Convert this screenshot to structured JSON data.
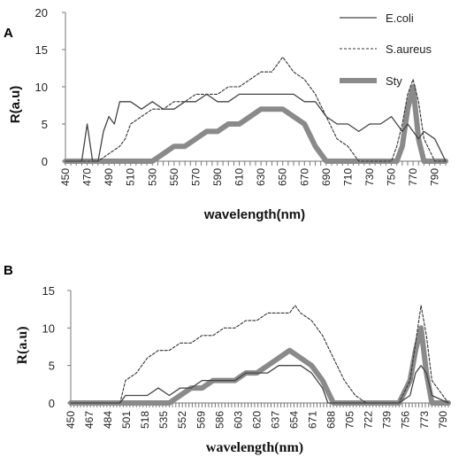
{
  "chart_data": [
    {
      "panel": "A",
      "type": "line",
      "xlabel": "wavelength(nm)",
      "ylabel": "R(a.u)",
      "ylim": [
        0,
        20
      ],
      "yticks": [
        "0",
        "5",
        "10",
        "15",
        "20"
      ],
      "xlim": [
        450,
        800
      ],
      "xticks": [
        "450",
        "470",
        "490",
        "510",
        "530",
        "550",
        "570",
        "590",
        "610",
        "630",
        "650",
        "670",
        "690",
        "710",
        "730",
        "750",
        "770",
        "790"
      ],
      "grid": false,
      "legend": "top-right",
      "series": [
        {
          "name": "E.coli",
          "style": "solid",
          "x": [
            450,
            455,
            460,
            465,
            470,
            475,
            480,
            485,
            490,
            495,
            500,
            510,
            520,
            530,
            540,
            550,
            560,
            570,
            580,
            590,
            600,
            610,
            620,
            630,
            640,
            650,
            660,
            670,
            680,
            690,
            700,
            710,
            720,
            730,
            740,
            750,
            760,
            765,
            770,
            775,
            780,
            790,
            800
          ],
          "y": [
            0,
            0,
            0,
            0,
            5,
            0,
            0,
            4,
            6,
            5,
            8,
            8,
            7,
            8,
            7,
            7,
            8,
            8,
            9,
            8,
            8,
            9,
            9,
            9,
            9,
            9,
            9,
            8,
            8,
            6,
            5,
            5,
            4,
            5,
            5,
            6,
            4,
            5,
            4,
            3,
            4,
            3,
            0
          ]
        },
        {
          "name": "S.aureus",
          "style": "dashed",
          "x": [
            450,
            480,
            490,
            500,
            505,
            510,
            520,
            530,
            540,
            550,
            560,
            570,
            580,
            590,
            600,
            610,
            620,
            630,
            640,
            645,
            650,
            655,
            660,
            670,
            680,
            690,
            700,
            710,
            720,
            730,
            740,
            750,
            755,
            760,
            765,
            770,
            775,
            780,
            790,
            800
          ],
          "y": [
            0,
            0,
            1,
            2,
            3,
            5,
            6,
            7,
            7,
            8,
            8,
            9,
            9,
            9,
            10,
            10,
            11,
            12,
            12,
            13,
            14,
            13,
            12,
            11,
            9,
            6,
            3,
            2,
            0,
            0,
            0,
            0,
            2,
            5,
            9,
            11,
            8,
            3,
            0,
            0
          ]
        },
        {
          "name": "Sty",
          "style": "thick",
          "x": [
            450,
            530,
            540,
            550,
            560,
            570,
            580,
            590,
            600,
            610,
            620,
            630,
            640,
            650,
            660,
            670,
            680,
            690,
            750,
            755,
            760,
            765,
            770,
            775,
            780,
            800
          ],
          "y": [
            0,
            0,
            1,
            2,
            2,
            3,
            4,
            4,
            5,
            5,
            6,
            7,
            7,
            7,
            6,
            5,
            2,
            0,
            0,
            0,
            2,
            7,
            10,
            3,
            0,
            0
          ]
        }
      ]
    },
    {
      "panel": "B",
      "type": "line",
      "xlabel": "wavelength(nm)",
      "ylabel": "R(a.u)",
      "ylim": [
        0,
        15
      ],
      "yticks": [
        "0",
        "5",
        "10",
        "15"
      ],
      "xlim": [
        450,
        795
      ],
      "xticks": [
        "450",
        "467",
        "484",
        "501",
        "518",
        "535",
        "552",
        "569",
        "586",
        "603",
        "620",
        "637",
        "654",
        "671",
        "688",
        "705",
        "722",
        "739",
        "756",
        "773",
        "790"
      ],
      "grid": false,
      "legend": "none",
      "series": [
        {
          "style": "solid",
          "x": [
            450,
            495,
            500,
            510,
            520,
            530,
            540,
            550,
            560,
            570,
            580,
            590,
            600,
            610,
            620,
            630,
            640,
            650,
            660,
            670,
            680,
            685,
            750,
            760,
            765,
            770,
            775,
            780,
            795
          ],
          "y": [
            0,
            0,
            1,
            1,
            1,
            2,
            1,
            2,
            2,
            3,
            3,
            3,
            3,
            4,
            4,
            4,
            5,
            5,
            5,
            4,
            2,
            0,
            0,
            1,
            4,
            5,
            4,
            1,
            0
          ]
        },
        {
          "style": "dashed",
          "x": [
            450,
            495,
            500,
            510,
            520,
            530,
            540,
            550,
            560,
            570,
            580,
            590,
            600,
            610,
            620,
            630,
            640,
            650,
            655,
            660,
            670,
            680,
            690,
            700,
            710,
            720,
            740,
            750,
            760,
            765,
            770,
            775,
            780,
            795
          ],
          "y": [
            0,
            0,
            3,
            4,
            6,
            7,
            7,
            8,
            8,
            9,
            9,
            10,
            10,
            11,
            11,
            12,
            12,
            12,
            13,
            12,
            11,
            9,
            6,
            3,
            1,
            0,
            0,
            0,
            3,
            8,
            13,
            9,
            3,
            0
          ]
        },
        {
          "style": "thick",
          "x": [
            450,
            540,
            550,
            560,
            570,
            580,
            590,
            600,
            610,
            620,
            630,
            640,
            650,
            660,
            670,
            680,
            690,
            750,
            760,
            765,
            770,
            775,
            780,
            795
          ],
          "y": [
            0,
            0,
            1,
            2,
            2,
            3,
            3,
            3,
            4,
            4,
            5,
            6,
            7,
            6,
            5,
            3,
            0,
            0,
            3,
            7,
            10,
            4,
            0,
            0
          ]
        }
      ]
    }
  ]
}
